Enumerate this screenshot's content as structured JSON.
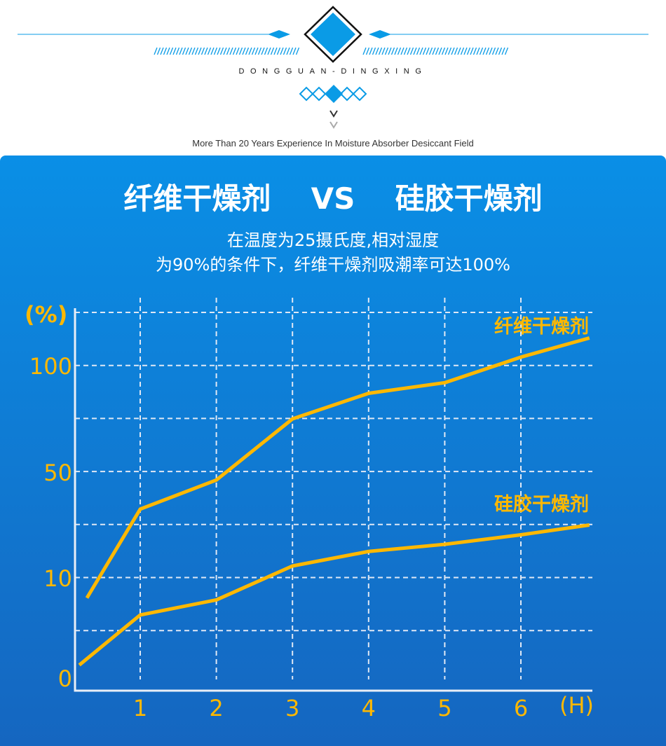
{
  "header": {
    "brand": "DONGGUAN-DINGXING",
    "tagline": "More Than 20 Years Experience In Moisture Absorber Desiccant Field",
    "accent_color": "#0a9be6"
  },
  "chart_data": {
    "type": "line",
    "title": "纤维干燥剂  VS  硅胶干燥剂",
    "subtitle": [
      "在温度为25摄氏度,相对湿度",
      "为90%的条件下，纤维干燥剂吸潮率可达100%"
    ],
    "ylabel": "(%)",
    "xlabel": "(H)",
    "x_ticks": [
      "1",
      "2",
      "3",
      "4",
      "5",
      "6"
    ],
    "y_ticks": [
      {
        "value": 0,
        "label": "0"
      },
      {
        "value": 10,
        "label": "10"
      },
      {
        "value": 50,
        "label": "50"
      },
      {
        "value": 100,
        "label": "100"
      }
    ],
    "y_scale": "non-linear (piecewise, spacing 0-10, 10-50, 50-100 equal)",
    "grid": true,
    "line_color": "#ffb800",
    "series": [
      {
        "name": "纤维干燥剂",
        "x": [
          0.3,
          1,
          2,
          3,
          4,
          5,
          6,
          6.9
        ],
        "values": [
          8,
          36,
          47,
          75,
          87,
          92,
          104,
          113
        ]
      },
      {
        "name": "硅胶干燥剂",
        "x": [
          0.2,
          1,
          2,
          3,
          4,
          5,
          6,
          6.9
        ],
        "values": [
          1.3,
          6.3,
          7.8,
          14.5,
          20,
          22.7,
          26.3,
          30
        ]
      }
    ]
  }
}
